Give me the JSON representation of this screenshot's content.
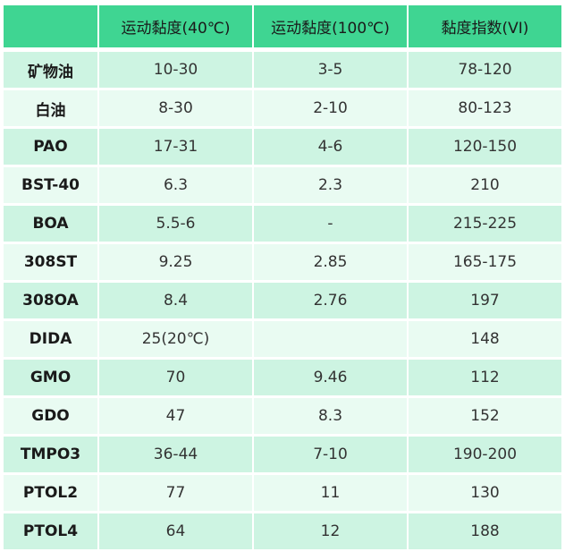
{
  "table": {
    "headers": [
      "",
      "运动黏度(40℃)",
      "运动黏度(100℃)",
      "黏度指数(VI)"
    ],
    "rows": [
      [
        "矿物油",
        "10-30",
        "3-5",
        "78-120"
      ],
      [
        "白油",
        "8-30",
        "2-10",
        "80-123"
      ],
      [
        "PAO",
        "17-31",
        "4-6",
        "120-150"
      ],
      [
        "BST-40",
        "6.3",
        "2.3",
        "210"
      ],
      [
        "BOA",
        "5.5-6",
        "-",
        "215-225"
      ],
      [
        "308ST",
        "9.25",
        "2.85",
        "165-175"
      ],
      [
        "308OA",
        "8.4",
        "2.76",
        "197"
      ],
      [
        "DIDA",
        "25(20℃)",
        "",
        "148"
      ],
      [
        "GMO",
        "70",
        "9.46",
        "112"
      ],
      [
        "GDO",
        "47",
        "8.3",
        "152"
      ],
      [
        "TMPO3",
        "36-44",
        "7-10",
        "190-200"
      ],
      [
        "PTOL2",
        "77",
        "11",
        "130"
      ],
      [
        "PTOL4",
        "64",
        "12",
        "188"
      ]
    ]
  },
  "colors": {
    "header_bg": "#3fd592",
    "row_bg_odd": "#cdf4e2",
    "row_bg_even": "#e9fbf2"
  }
}
